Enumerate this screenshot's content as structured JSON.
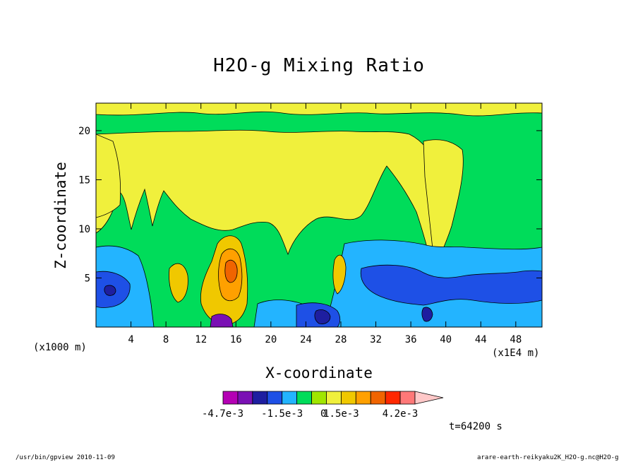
{
  "chart_data": {
    "type": "heatmap",
    "title": "H2O-g Mixing Ratio",
    "xlabel": "X-coordinate",
    "ylabel": "Z-coordinate",
    "x_unit_note": "(x1000 m)",
    "x_scale_note": "(x1E4 m)",
    "xlim": [
      0,
      51
    ],
    "ylim": [
      0,
      22.8
    ],
    "x_ticks": [
      4,
      8,
      12,
      16,
      20,
      24,
      28,
      32,
      36,
      40,
      44,
      48
    ],
    "y_ticks": [
      5,
      10,
      15,
      20
    ],
    "colorbar": {
      "colors": [
        "#b400b4",
        "#7a10b4",
        "#1e1ea0",
        "#1e50e6",
        "#23b4ff",
        "#00dc5a",
        "#a0e600",
        "#f0f03c",
        "#f0c800",
        "#ffa000",
        "#f06400",
        "#ff2800",
        "#ff7878",
        "#ffc8c8"
      ],
      "labels": [
        "-4.7e-3",
        "-1.5e-3",
        "0",
        "1.5e-3",
        "4.2e-3"
      ],
      "extend": "max"
    },
    "regions": [
      {
        "level": 5,
        "desc": "background green field"
      },
      {
        "level": 7,
        "desc": "upper yellow layer and central yellow dome"
      },
      {
        "level": 4,
        "desc": "cyan layers near surface and right lower region"
      },
      {
        "level": 3,
        "desc": "blue cores near x=2, x=26, x=32-51"
      },
      {
        "level": 11,
        "desc": "orange-red core near x=15, z=5"
      }
    ]
  },
  "time_label": "t=64200 s",
  "footer_left": "/usr/bin/gpview  2010-11-09",
  "footer_right": "arare-earth-reikyaku2K_H2O-g.nc@H2O-g"
}
